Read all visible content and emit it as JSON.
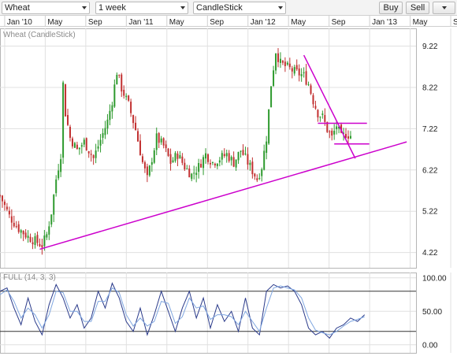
{
  "toolbar": {
    "symbol": "Wheat",
    "period": "1 week",
    "chart_type": "CandleStick",
    "buy_label": "Buy",
    "sell_label": "Sell"
  },
  "main_panel": {
    "label": "Wheat (CandleStick)"
  },
  "oscillator_panel": {
    "label": "FULL (14, 3, 3)"
  },
  "colors": {
    "up_candle": "#2e9a2e",
    "down_candle": "#c23030",
    "trendline": "#cc00cc",
    "stoch_k": "#2a3a8a",
    "stoch_d": "#7fa6e0",
    "grid": "#e0e0e0"
  },
  "chart_data": [
    {
      "type": "candlestick",
      "title": "Wheat (CandleStick)",
      "x_tick_labels": [
        "Jan '10",
        "May",
        "Sep",
        "Jan '11",
        "May",
        "Sep",
        "Jan '12",
        "May",
        "Sep",
        "Jan '13",
        "May",
        "Se"
      ],
      "y_tick_labels": [
        "9.22",
        "8.22",
        "7.22",
        "6.22",
        "5.22",
        "4.22"
      ],
      "ylim": [
        3.85,
        9.65
      ],
      "x_range_weeks": [
        0,
        178
      ],
      "grid": true,
      "close_path": [
        [
          0,
          5.6
        ],
        [
          4,
          5.1
        ],
        [
          8,
          4.8
        ],
        [
          12,
          4.6
        ],
        [
          15,
          4.5
        ],
        [
          18,
          4.4
        ],
        [
          20,
          4.65
        ],
        [
          22,
          5.2
        ],
        [
          24,
          6.0
        ],
        [
          26,
          6.6
        ],
        [
          27,
          8.3
        ],
        [
          28,
          7.6
        ],
        [
          30,
          7.0
        ],
        [
          33,
          6.7
        ],
        [
          36,
          6.9
        ],
        [
          40,
          6.5
        ],
        [
          44,
          7.1
        ],
        [
          46,
          7.4
        ],
        [
          48,
          7.9
        ],
        [
          50,
          8.6
        ],
        [
          52,
          8.2
        ],
        [
          55,
          7.8
        ],
        [
          58,
          7.2
        ],
        [
          61,
          6.4
        ],
        [
          63,
          6.0
        ],
        [
          65,
          6.5
        ],
        [
          67,
          7.0
        ],
        [
          70,
          6.8
        ],
        [
          73,
          6.4
        ],
        [
          76,
          6.6
        ],
        [
          79,
          6.3
        ],
        [
          82,
          6.1
        ],
        [
          85,
          6.3
        ],
        [
          88,
          6.6
        ],
        [
          91,
          6.4
        ],
        [
          94,
          6.5
        ],
        [
          97,
          6.6
        ],
        [
          100,
          6.4
        ],
        [
          103,
          6.7
        ],
        [
          106,
          6.4
        ],
        [
          108,
          6.2
        ],
        [
          110,
          6.0
        ],
        [
          112,
          6.3
        ],
        [
          114,
          7.0
        ],
        [
          116,
          8.3
        ],
        [
          118,
          9.1
        ],
        [
          120,
          8.8
        ],
        [
          123,
          8.7
        ],
        [
          126,
          8.6
        ],
        [
          130,
          8.5
        ],
        [
          132,
          8.3
        ],
        [
          134,
          7.9
        ],
        [
          136,
          7.6
        ],
        [
          138,
          7.5
        ],
        [
          140,
          7.2
        ],
        [
          142,
          7.0
        ],
        [
          144,
          7.3
        ],
        [
          146,
          7.0
        ],
        [
          148,
          7.1
        ],
        [
          150,
          7.05
        ]
      ],
      "trendlines": [
        {
          "name": "support",
          "points": [
            [
              17,
              4.3
            ],
            [
              174,
              6.9
            ]
          ]
        },
        {
          "name": "falling-resistance",
          "points": [
            [
              130,
              9.0
            ],
            [
              152,
              6.5
            ]
          ]
        },
        {
          "name": "horizontal-resistance",
          "points": [
            [
              136,
              7.35
            ],
            [
              157,
              7.35
            ]
          ]
        },
        {
          "name": "horizontal-support",
          "points": [
            [
              143,
              6.85
            ],
            [
              158,
              6.85
            ]
          ]
        }
      ]
    },
    {
      "type": "line",
      "title": "FULL (14, 3, 3)",
      "y_tick_labels": [
        "100.00",
        "50.00",
        "0.00"
      ],
      "ylim": [
        -12,
        108
      ],
      "reference_lines": [
        80,
        20
      ],
      "grid": true,
      "series": [
        {
          "values": [
            [
              0,
              80
            ],
            [
              3,
              85
            ],
            [
              6,
              55
            ],
            [
              9,
              30
            ],
            [
              12,
              70
            ],
            [
              15,
              35
            ],
            [
              18,
              15
            ],
            [
              21,
              60
            ],
            [
              24,
              90
            ],
            [
              27,
              70
            ],
            [
              30,
              40
            ],
            [
              33,
              60
            ],
            [
              36,
              25
            ],
            [
              39,
              40
            ],
            [
              42,
              80
            ],
            [
              45,
              55
            ],
            [
              48,
              92
            ],
            [
              51,
              70
            ],
            [
              54,
              35
            ],
            [
              57,
              20
            ],
            [
              60,
              55
            ],
            [
              63,
              15
            ],
            [
              66,
              45
            ],
            [
              69,
              80
            ],
            [
              72,
              50
            ],
            [
              75,
              20
            ],
            [
              78,
              55
            ],
            [
              81,
              80
            ],
            [
              84,
              40
            ],
            [
              87,
              70
            ],
            [
              90,
              25
            ],
            [
              93,
              60
            ],
            [
              96,
              35
            ],
            [
              99,
              50
            ],
            [
              102,
              20
            ],
            [
              105,
              70
            ],
            [
              108,
              25
            ],
            [
              111,
              15
            ],
            [
              114,
              80
            ],
            [
              117,
              90
            ],
            [
              120,
              85
            ],
            [
              123,
              88
            ],
            [
              126,
              80
            ],
            [
              129,
              60
            ],
            [
              132,
              25
            ],
            [
              135,
              15
            ],
            [
              138,
              20
            ],
            [
              141,
              10
            ],
            [
              144,
              25
            ],
            [
              147,
              30
            ],
            [
              150,
              40
            ],
            [
              153,
              35
            ],
            [
              156,
              45
            ]
          ]
        },
        {
          "values": [
            [
              0,
              75
            ],
            [
              3,
              82
            ],
            [
              6,
              65
            ],
            [
              9,
              40
            ],
            [
              12,
              55
            ],
            [
              15,
              45
            ],
            [
              18,
              25
            ],
            [
              21,
              45
            ],
            [
              24,
              80
            ],
            [
              27,
              78
            ],
            [
              30,
              50
            ],
            [
              33,
              50
            ],
            [
              36,
              35
            ],
            [
              39,
              35
            ],
            [
              42,
              65
            ],
            [
              45,
              65
            ],
            [
              48,
              85
            ],
            [
              51,
              78
            ],
            [
              54,
              45
            ],
            [
              57,
              28
            ],
            [
              60,
              40
            ],
            [
              63,
              28
            ],
            [
              66,
              35
            ],
            [
              69,
              65
            ],
            [
              72,
              62
            ],
            [
              75,
              32
            ],
            [
              78,
              42
            ],
            [
              81,
              70
            ],
            [
              84,
              55
            ],
            [
              87,
              58
            ],
            [
              90,
              38
            ],
            [
              93,
              45
            ],
            [
              96,
              45
            ],
            [
              99,
              42
            ],
            [
              102,
              30
            ],
            [
              105,
              50
            ],
            [
              108,
              35
            ],
            [
              111,
              20
            ],
            [
              114,
              55
            ],
            [
              117,
              85
            ],
            [
              120,
              88
            ],
            [
              123,
              85
            ],
            [
              126,
              82
            ],
            [
              129,
              70
            ],
            [
              132,
              40
            ],
            [
              135,
              22
            ],
            [
              138,
              18
            ],
            [
              141,
              15
            ],
            [
              144,
              20
            ],
            [
              147,
              28
            ],
            [
              150,
              35
            ],
            [
              153,
              38
            ],
            [
              156,
              42
            ]
          ]
        }
      ]
    }
  ]
}
